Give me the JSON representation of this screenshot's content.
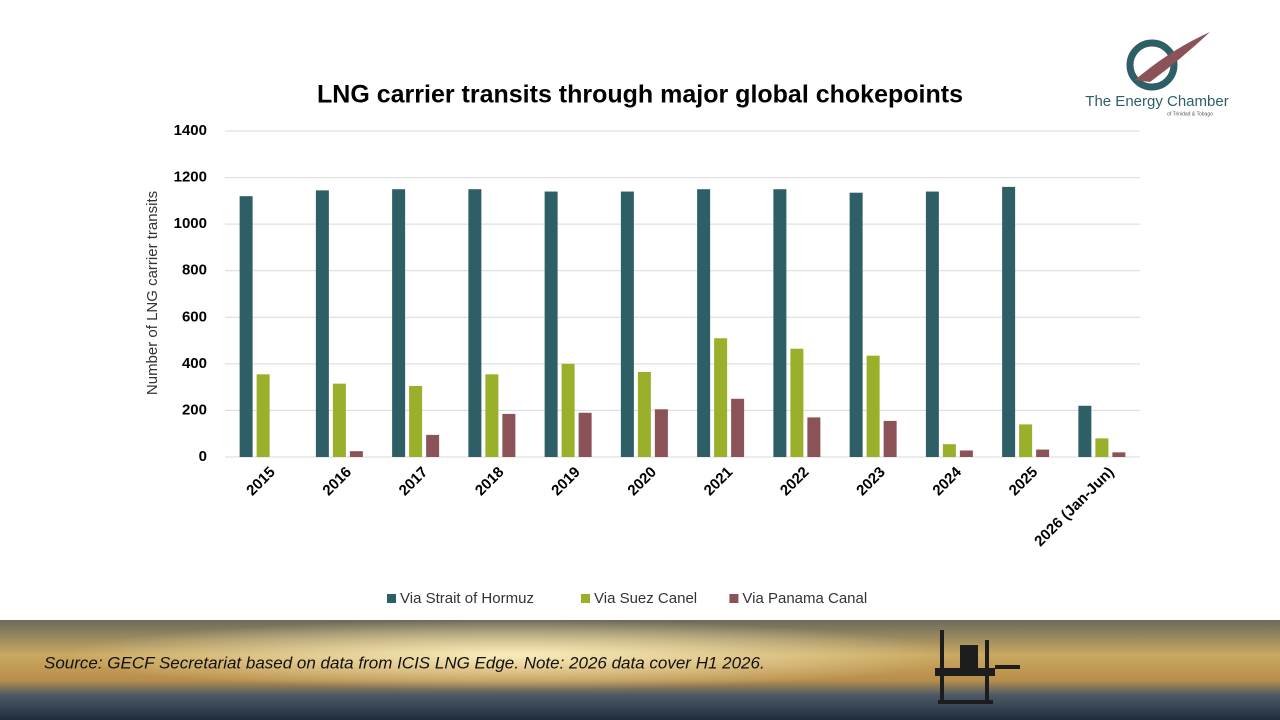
{
  "logo": {
    "name": "The Energy Chamber",
    "subtitle": "of Trinidad & Tobago"
  },
  "source": "Source: GECF Secretariat based on data from ICIS LNG Edge. Note: 2026 data cover H1 2026.",
  "chart_data": {
    "type": "bar",
    "title": "LNG carrier transits through major global chokepoints",
    "y_label": "Number of LNG carrier transits",
    "categories": [
      "2015",
      "2016",
      "2017",
      "2018",
      "2019",
      "2020",
      "2021",
      "2022",
      "2023",
      "2024",
      "2025",
      "2026 (Jan-Jun)"
    ],
    "series": [
      {
        "name": "Via Strait of Hormuz",
        "color": "#2e5f66",
        "values": [
          1120,
          1145,
          1150,
          1150,
          1140,
          1140,
          1150,
          1150,
          1135,
          1140,
          1160,
          220
        ]
      },
      {
        "name": "Via Suez Canel",
        "color": "#9aaf2a",
        "values": [
          355,
          315,
          305,
          355,
          400,
          365,
          510,
          465,
          435,
          55,
          140,
          80
        ]
      },
      {
        "name": "Via Panama Canal",
        "color": "#8b5258",
        "values": [
          0,
          25,
          95,
          185,
          190,
          205,
          250,
          170,
          155,
          28,
          32,
          20
        ]
      }
    ],
    "ylim": [
      0,
      1400
    ],
    "yticks": [
      0,
      200,
      400,
      600,
      800,
      1000,
      1200,
      1400
    ],
    "grid": true,
    "legend": "bottom"
  }
}
